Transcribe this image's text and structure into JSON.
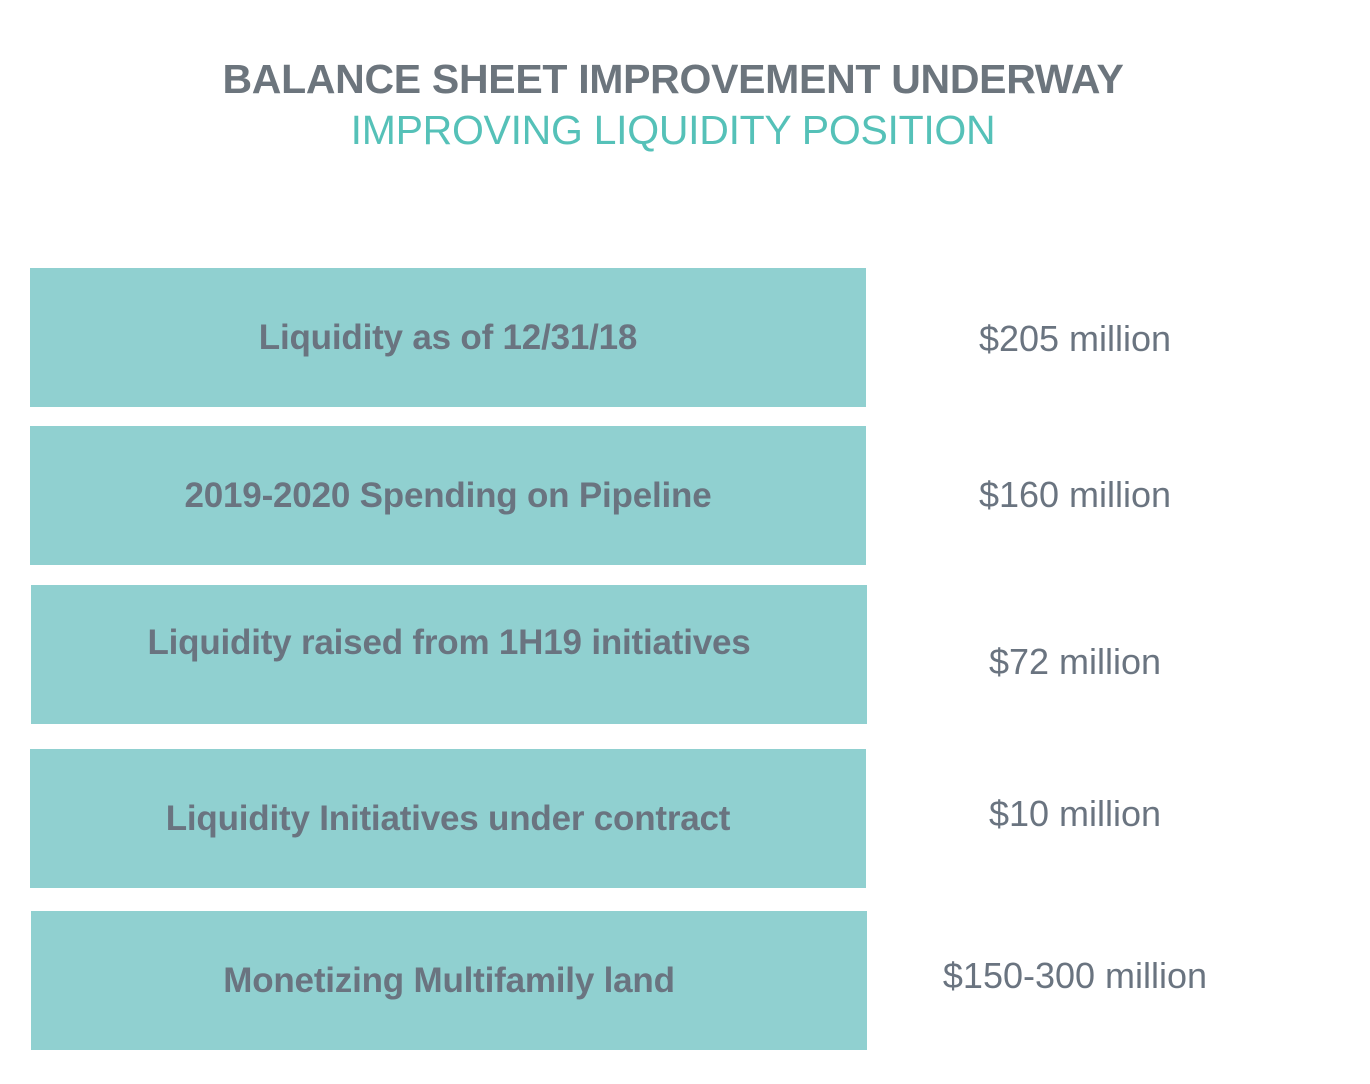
{
  "header": {
    "title": "BALANCE SHEET IMPROVEMENT UNDERWAY",
    "subtitle": "IMPROVING LIQUIDITY POSITION"
  },
  "rows": [
    {
      "label": "Liquidity as of 12/31/18",
      "value": "$205 million"
    },
    {
      "label": "2019-2020 Spending on Pipeline",
      "value": "$160 million"
    },
    {
      "label": "Liquidity raised from 1H19 initiatives",
      "value": "$72 million"
    },
    {
      "label": "Liquidity Initiatives under contract",
      "value": "$10 million"
    },
    {
      "label": "Monetizing Multifamily land",
      "value": "$150-300 million"
    }
  ],
  "colors": {
    "box_fill": "#90d0d0",
    "title": "#6c757d",
    "subtitle": "#55c1b8",
    "text": "#6a7480"
  }
}
